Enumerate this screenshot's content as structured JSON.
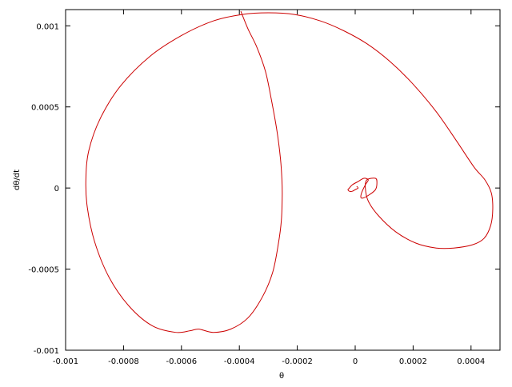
{
  "chart_data": {
    "type": "line",
    "title": "",
    "xlabel": "θ",
    "ylabel": "dθ/dt",
    "xlim": [
      -0.001,
      0.0005
    ],
    "ylim": [
      -0.001,
      0.0011
    ],
    "x_ticks": [
      -0.001,
      -0.0008,
      -0.0006,
      -0.0004,
      -0.0002,
      0,
      0.0002,
      0.0004
    ],
    "x_tick_labels": [
      "-0.001",
      "-0.0008",
      "-0.0006",
      "-0.0004",
      "-0.0002",
      "0",
      "0.0002",
      "0.0004"
    ],
    "y_ticks": [
      -0.001,
      -0.0005,
      0,
      0.0005,
      0.001
    ],
    "y_tick_labels": [
      "-0.001",
      "-0.0005",
      "0",
      "0.0005",
      "0.001"
    ],
    "grid": false,
    "legend": "none",
    "series": [
      {
        "color": "#cc0000",
        "x": [
          -0.000395,
          -0.00037,
          -0.00034,
          -0.00031,
          -0.00029,
          -0.00027,
          -0.000258,
          -0.000253,
          -0.000252,
          -0.000255,
          -0.000265,
          -0.000285,
          -0.00032,
          -0.00037,
          -0.00043,
          -0.00049,
          -0.00054,
          -0.00057,
          -0.00062,
          -0.0007,
          -0.00078,
          -0.00085,
          -0.0009,
          -0.000925,
          -0.00093,
          -0.00092,
          -0.00088,
          -0.00081,
          -0.00071,
          -0.0006,
          -0.00049,
          -0.00039,
          -0.0003,
          -0.00021,
          -0.00012,
          -4e-05,
          4e-05,
          0.00012,
          0.0002,
          0.00028,
          0.00035,
          0.00041,
          0.000448,
          0.00047,
          0.000475,
          0.000468,
          0.000445,
          0.000405,
          0.00034,
          0.00028,
          0.00021,
          0.00014,
          8e-05,
          4.5e-05,
          3.5e-05,
          4e-05,
          7e-05,
          7.5e-05,
          7e-05,
          5e-05,
          3e-05,
          2e-05,
          2.2e-05,
          3.5e-05,
          4.5e-05,
          3e-05,
          1e-05,
          -1e-05,
          -2e-05,
          -2.5e-05,
          -2e-05,
          -1e-05,
          0.0,
          1e-05,
          5e-06
        ],
        "y": [
          0.00109,
          0.00098,
          0.00087,
          0.00072,
          0.00055,
          0.00035,
          0.00018,
          5e-05,
          -5e-05,
          -0.0002,
          -0.00034,
          -0.00052,
          -0.00067,
          -0.0008,
          -0.00087,
          -0.00089,
          -0.00087,
          -0.00088,
          -0.00089,
          -0.00085,
          -0.00073,
          -0.00055,
          -0.00033,
          -0.00012,
          5e-05,
          0.00023,
          0.00043,
          0.00063,
          0.00081,
          0.00094,
          0.00103,
          0.00107,
          0.00108,
          0.00107,
          0.00103,
          0.00097,
          0.00089,
          0.00078,
          0.00064,
          0.00047,
          0.00029,
          0.00013,
          5e-05,
          -3e-05,
          -0.00013,
          -0.00023,
          -0.00031,
          -0.00035,
          -0.00037,
          -0.00037,
          -0.00034,
          -0.00027,
          -0.00017,
          -8e-05,
          0.0,
          5e-05,
          6e-05,
          3e-05,
          -1e-05,
          -4e-05,
          -6e-05,
          -6e-05,
          -3e-05,
          2e-05,
          5e-05,
          6e-05,
          4e-05,
          2e-05,
          0.0,
          -1e-05,
          -2e-05,
          -2e-05,
          -1e-05,
          0.0,
          1e-05
        ]
      }
    ]
  }
}
